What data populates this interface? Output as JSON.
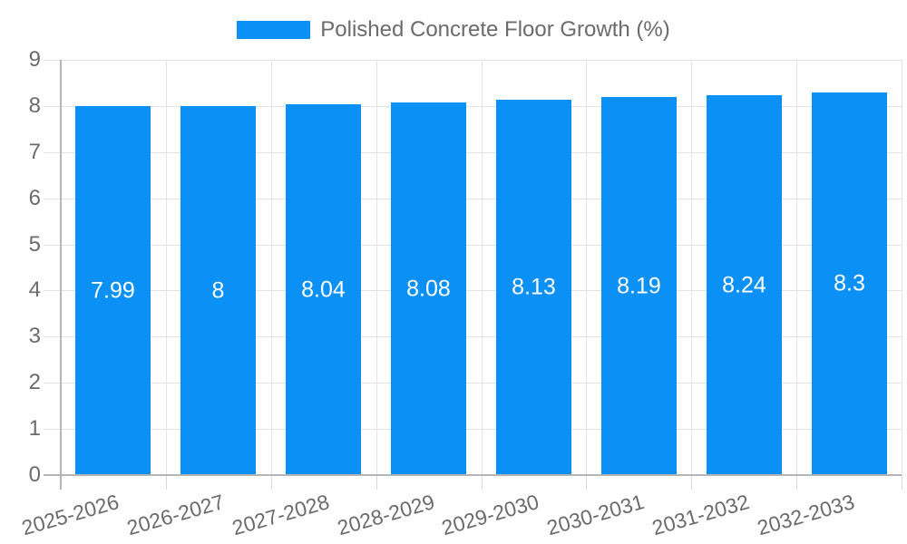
{
  "chart_data": {
    "type": "bar",
    "title": "",
    "legend": {
      "label": "Polished Concrete Floor Growth (%)",
      "position": "top-center"
    },
    "categories": [
      "2025-2026",
      "2026-2027",
      "2027-2028",
      "2028-2029",
      "2029-2030",
      "2030-2031",
      "2031-2032",
      "2032-2033"
    ],
    "values": [
      7.99,
      8,
      8.04,
      8.08,
      8.13,
      8.19,
      8.24,
      8.3
    ],
    "value_labels": [
      "7.99",
      "8",
      "8.04",
      "8.08",
      "8.13",
      "8.19",
      "8.24",
      "8.3"
    ],
    "value_label_position": "inside-middle",
    "xlabel": "",
    "ylabel": "",
    "ylim": [
      0,
      9
    ],
    "yticks": [
      0,
      1,
      2,
      3,
      4,
      5,
      6,
      7,
      8,
      9
    ],
    "grid": true,
    "colors": {
      "bar": "#0b90f5",
      "gridline": "#e3e3e3",
      "axis_line": "#b5b5b5",
      "tick": "#d9d9d9",
      "axis_text": "#6b6b6b",
      "value_text": "#ffffff",
      "background": "#ffffff"
    }
  }
}
